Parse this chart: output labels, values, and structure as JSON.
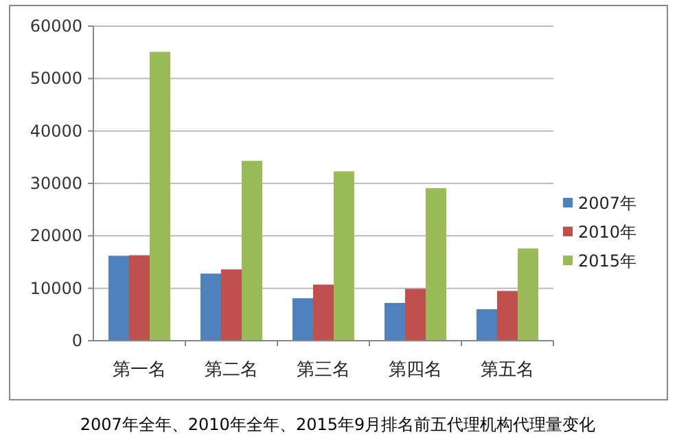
{
  "chart_data": {
    "type": "bar",
    "categories": [
      "第一名",
      "第二名",
      "第三名",
      "第四名",
      "第五名"
    ],
    "series": [
      {
        "name": "2007年",
        "color": "#4f81bd",
        "values": [
          16200,
          12800,
          8100,
          7200,
          6000
        ]
      },
      {
        "name": "2010年",
        "color": "#c0504d",
        "values": [
          16300,
          13600,
          10700,
          9900,
          9500
        ]
      },
      {
        "name": "2015年",
        "color": "#9bbb59",
        "values": [
          55100,
          34300,
          32300,
          29100,
          17600
        ]
      }
    ],
    "ylim": [
      0,
      60000
    ],
    "yticks": [
      0,
      10000,
      20000,
      30000,
      40000,
      50000,
      60000
    ],
    "grid": "y",
    "legend": "right",
    "annotations": [
      "2007年全年、2010年全年、2015年9月排名前五代理机构代理量变化"
    ]
  }
}
